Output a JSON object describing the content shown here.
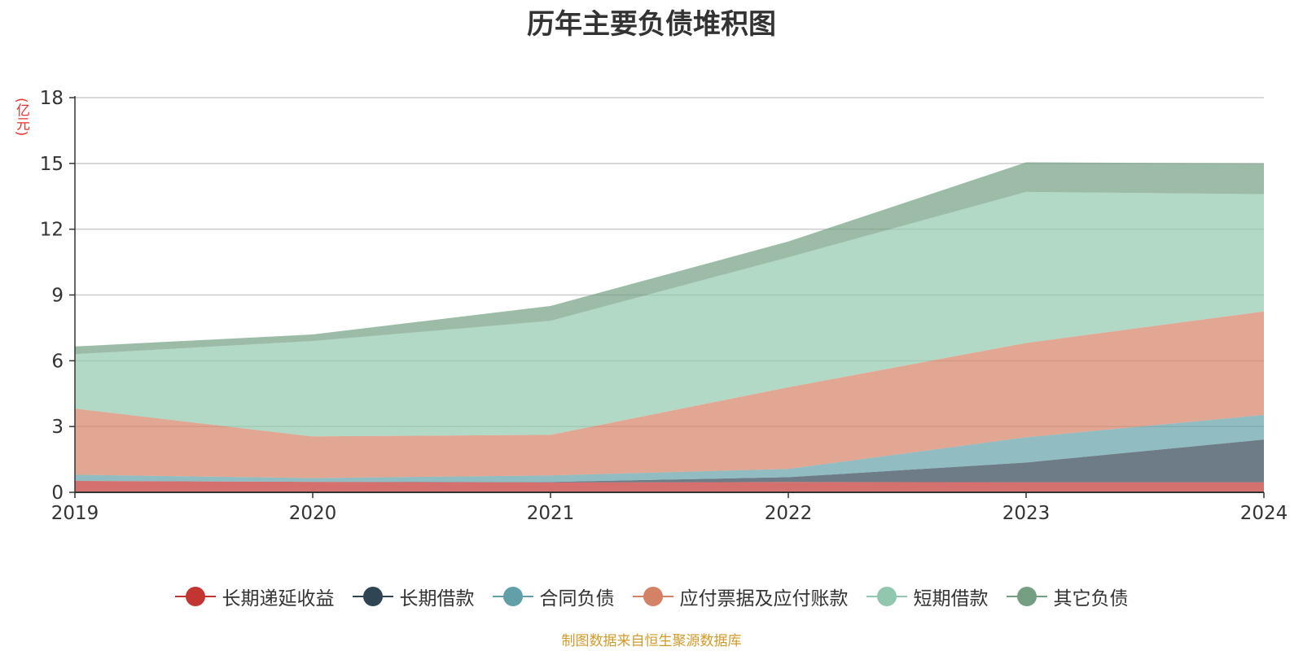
{
  "title": "历年主要负债堆积图",
  "unit_label": "(亿元)",
  "source_note": "制图数据来自恒生聚源数据库",
  "chart_data": {
    "type": "area",
    "stacked": true,
    "x": [
      "2019",
      "2020",
      "2021",
      "2022",
      "2023",
      "2024"
    ],
    "ylim": [
      0,
      18
    ],
    "yticks": [
      "0",
      "3",
      "6",
      "9",
      "12",
      "15",
      "18"
    ],
    "grid": true,
    "legend_position": "bottom",
    "series": [
      {
        "name": "长期递延收益",
        "color": "#c23531",
        "values": [
          0.52,
          0.48,
          0.45,
          0.47,
          0.46,
          0.46
        ]
      },
      {
        "name": "长期借款",
        "color": "#2f4554",
        "values": [
          0,
          0,
          0.02,
          0.22,
          0.9,
          1.95
        ]
      },
      {
        "name": "合同负债",
        "color": "#61a0a8",
        "values": [
          0.28,
          0.17,
          0.3,
          0.38,
          1.15,
          1.12
        ]
      },
      {
        "name": "应付票据及应付账款",
        "color": "#d48265",
        "values": [
          3.02,
          1.9,
          1.85,
          3.72,
          4.3,
          4.72
        ]
      },
      {
        "name": "短期借款",
        "color": "#91c7ae",
        "values": [
          2.48,
          4.35,
          5.2,
          5.93,
          6.89,
          5.35
        ]
      },
      {
        "name": "其它负债",
        "color": "#749f83",
        "values": [
          0.35,
          0.3,
          0.68,
          0.72,
          1.35,
          1.4
        ]
      }
    ]
  }
}
